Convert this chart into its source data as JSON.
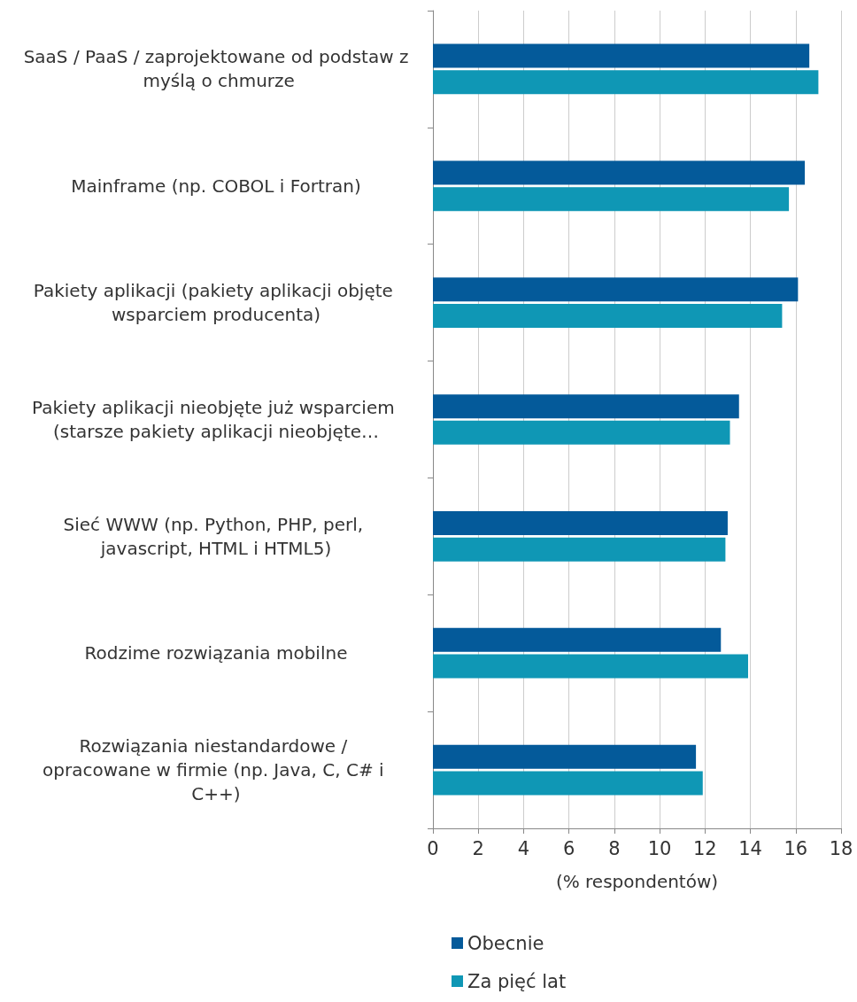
{
  "chart_data": {
    "type": "bar",
    "orientation": "horizontal",
    "categories": [
      "SaaS / PaaS / zaprojektowane od podstaw z myślą o chmurze",
      "Mainframe (np. COBOL i Fortran)",
      "Pakiety aplikacji (pakiety aplikacji objęte wsparciem producenta)",
      "Pakiety aplikacji nieobjęte już wsparciem (starsze pakiety aplikacji nieobjęte…",
      "Sieć WWW (np. Python, PHP, perl, javascript, HTML i HTML5)",
      "Rodzime rozwiązania mobilne",
      "Rozwiązania niestandardowe / opracowane w firmie (np. Java, C, C# i C++)"
    ],
    "series": [
      {
        "name": "Obecnie",
        "color": "#045a9a",
        "values": [
          16.6,
          16.4,
          16.1,
          13.5,
          13.0,
          12.7,
          11.6
        ]
      },
      {
        "name": "Za pięć lat",
        "color": "#0f97b5",
        "values": [
          17.0,
          15.7,
          15.4,
          13.1,
          12.9,
          13.9,
          11.9
        ]
      }
    ],
    "xlabel": "(% respondentów)",
    "xlim": [
      0,
      18
    ],
    "xticks": [
      0,
      2,
      4,
      6,
      8,
      10,
      12,
      14,
      16,
      18
    ],
    "grid": "x",
    "legend": "bottom"
  }
}
